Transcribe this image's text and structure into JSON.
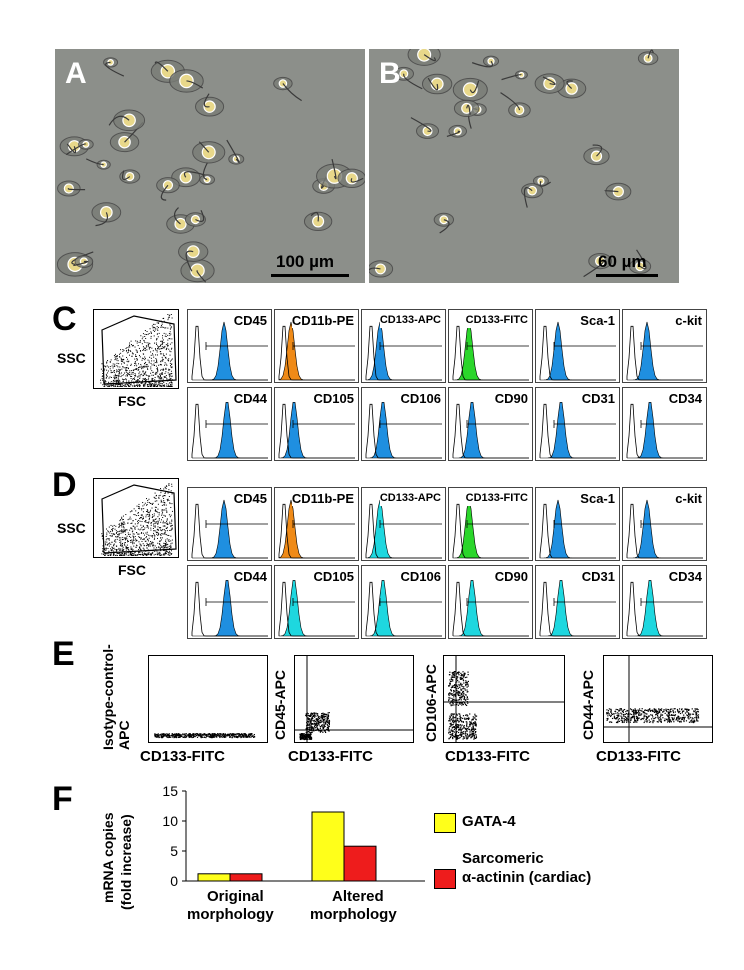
{
  "panels": {
    "A": {
      "letter": "A",
      "scale_label": "100 µm"
    },
    "B": {
      "letter": "B",
      "scale_label": "60 µm"
    },
    "C": {
      "letter": "C"
    },
    "D": {
      "letter": "D"
    },
    "E": {
      "letter": "E"
    },
    "F": {
      "letter": "F"
    }
  },
  "scatter_axes": {
    "y": "SSC",
    "x": "FSC"
  },
  "histogram_markers": {
    "row1": [
      "CD45",
      "CD11b-PE",
      "CD133-APC",
      "CD133-FITC",
      "Sca-1",
      "c-kit"
    ],
    "row2": [
      "CD44",
      "CD105",
      "CD106",
      "CD90",
      "CD31",
      "CD34"
    ]
  },
  "colors": {
    "blue": "#1f8fe0",
    "orange": "#ef8a17",
    "green": "#2bd62b",
    "cyan": "#1ed7df",
    "yellow": "#ffff1a",
    "red": "#ee1c1c"
  },
  "panelE": {
    "plots": [
      {
        "ylabel": "Isotype-control-APC",
        "xlabel": "CD133-FITC"
      },
      {
        "ylabel": "CD45-APC",
        "xlabel": "CD133-FITC"
      },
      {
        "ylabel": "CD106-APC",
        "xlabel": "CD133-FITC"
      },
      {
        "ylabel": "CD44-APC",
        "xlabel": "CD133-FITC"
      }
    ]
  },
  "chart_data": {
    "type": "bar",
    "categories": [
      "Original morphology",
      "Altered morphology"
    ],
    "series": [
      {
        "name": "GATA-4",
        "values": [
          1.2,
          11.5
        ]
      },
      {
        "name": "Sarcomeric α-actinin (cardiac)",
        "values": [
          1.2,
          5.8
        ]
      }
    ],
    "ylabel": "mRNA copies (fold increase)",
    "ylim": [
      0,
      15
    ],
    "yticks": [
      "0",
      "5",
      "10",
      "15"
    ],
    "legend_position": "right"
  },
  "panelF": {
    "ylabel_line1": "mRNA copies",
    "ylabel_line2": "(fold increase)",
    "cat1_line1": "Original",
    "cat1_line2": "morphology",
    "cat2_line1": "Altered",
    "cat2_line2": "morphology",
    "legend1": "GATA-4",
    "legend2_line1": "Sarcomeric",
    "legend2_line2": "α-actinin (cardiac)"
  }
}
